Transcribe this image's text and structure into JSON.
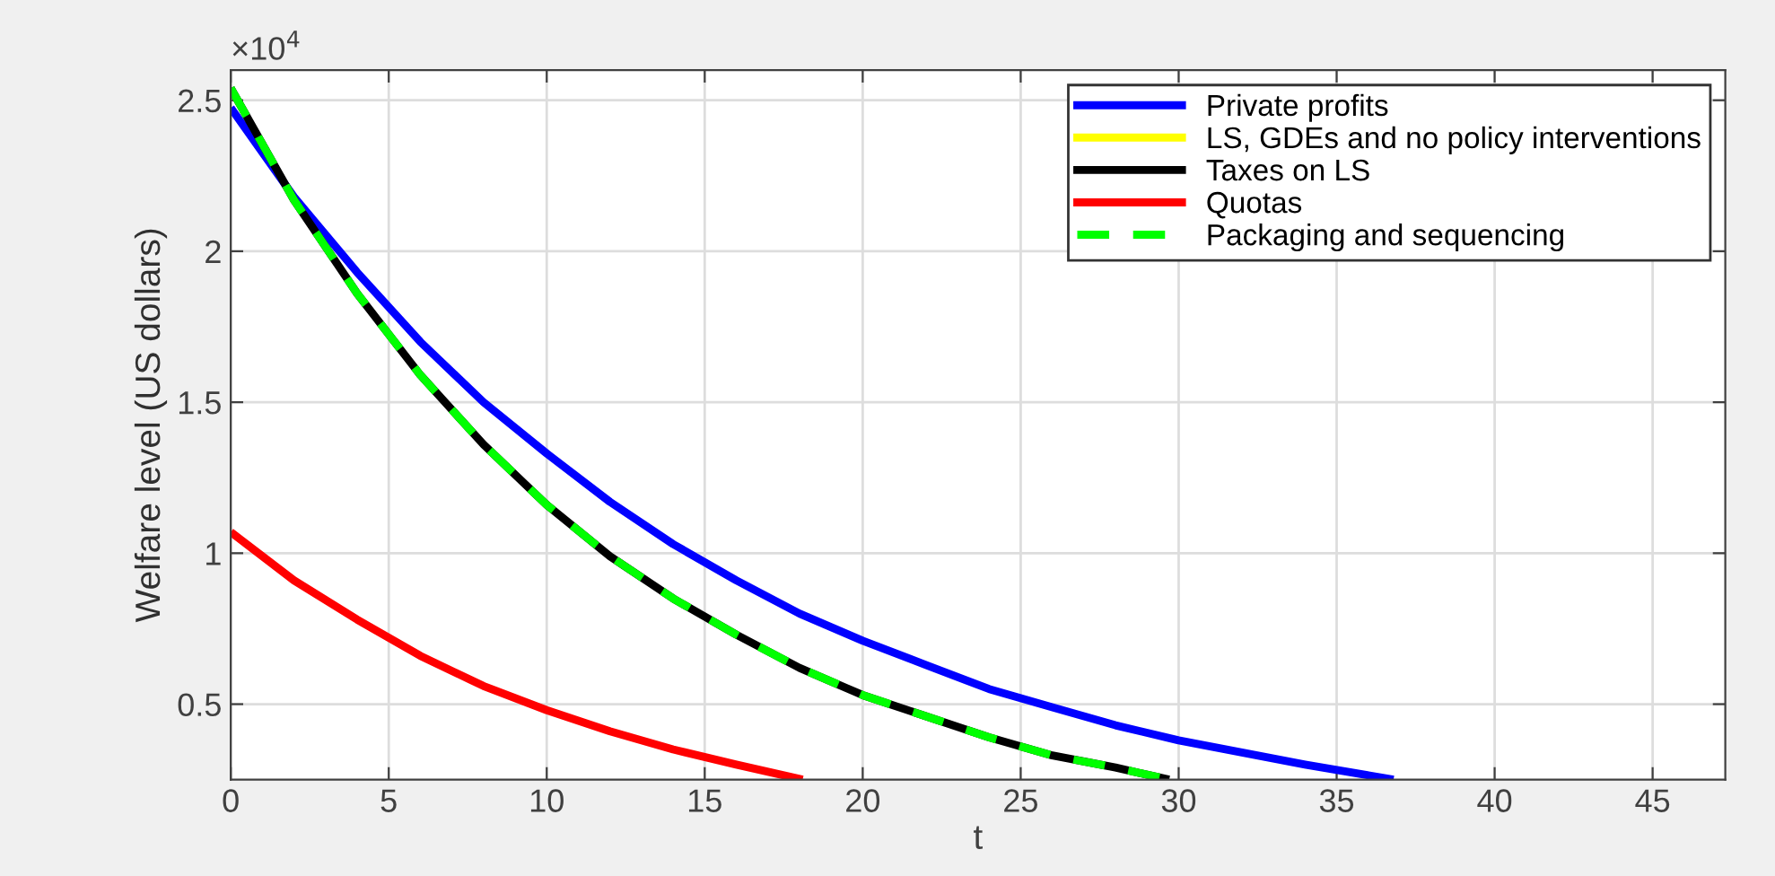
{
  "chart_data": {
    "type": "line",
    "xlabel": "t",
    "ylabel": "Welfare level (US dollars)",
    "annotations": [
      "×10$^{4}$"
    ],
    "xlim": [
      0,
      47.3
    ],
    "xticks": [
      0,
      5,
      10,
      15,
      20,
      25,
      30,
      35,
      40,
      45
    ],
    "ylim": [
      0.25,
      2.6
    ],
    "yticks": [
      0.5,
      1,
      1.5,
      2,
      2.5
    ],
    "grid": true,
    "legend": "top right",
    "marker": "none",
    "series": [
      {
        "name": "Private profits",
        "color": "#0000ff",
        "line_style": "solid",
        "x": [
          0,
          2,
          4,
          6,
          8,
          10,
          12,
          14,
          16,
          18,
          20,
          22,
          24,
          26,
          28,
          30,
          32,
          34,
          36.8
        ],
        "values": [
          2.475,
          2.18,
          1.93,
          1.7,
          1.5,
          1.33,
          1.17,
          1.03,
          0.91,
          0.8,
          0.71,
          0.63,
          0.55,
          0.49,
          0.43,
          0.38,
          0.34,
          0.3,
          0.25
        ]
      },
      {
        "name": "LS, GDEs and no policy interventions",
        "color": "#ffff00",
        "line_style": "solid"
      },
      {
        "name": "Taxes on LS",
        "color": "#000000",
        "line_style": "solid",
        "x": [
          0,
          2,
          4,
          6,
          8,
          10,
          12,
          14,
          16,
          18,
          20,
          22,
          24,
          26,
          28,
          29.7
        ],
        "values": [
          2.54,
          2.17,
          1.86,
          1.59,
          1.36,
          1.16,
          0.99,
          0.85,
          0.73,
          0.62,
          0.53,
          0.46,
          0.39,
          0.33,
          0.29,
          0.25
        ]
      },
      {
        "name": "Quotas",
        "color": "#ff0000",
        "line_style": "solid",
        "x": [
          0,
          2,
          4,
          6,
          8,
          10,
          12,
          14,
          16,
          18.1
        ],
        "values": [
          1.07,
          0.91,
          0.78,
          0.66,
          0.56,
          0.48,
          0.41,
          0.35,
          0.3,
          0.25
        ]
      },
      {
        "name": "Packaging and sequencing",
        "color": "#00ff00",
        "line_style": "dashed",
        "x": [
          0,
          2,
          4,
          6,
          8,
          10,
          12,
          14,
          16,
          18,
          20,
          22,
          24,
          26,
          28,
          29.7
        ],
        "values": [
          2.54,
          2.17,
          1.86,
          1.59,
          1.36,
          1.16,
          0.99,
          0.85,
          0.73,
          0.62,
          0.53,
          0.46,
          0.39,
          0.33,
          0.29,
          0.25
        ]
      }
    ]
  }
}
